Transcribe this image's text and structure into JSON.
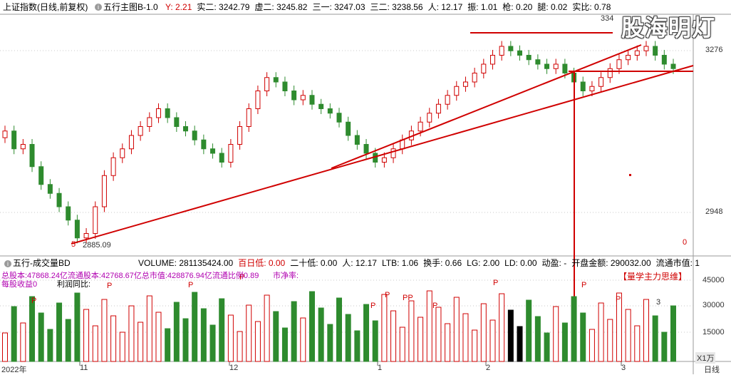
{
  "header": {
    "title": "上证指数(日线,前复权)",
    "indicator": "五行主图B-1.0",
    "readouts": [
      {
        "text": "Y: 2.21",
        "color": "#d00000"
      },
      {
        "text": "实二: 3242.79",
        "color": "#000000"
      },
      {
        "text": "虚二: 3245.82",
        "color": "#000000"
      },
      {
        "text": "三一: 3247.03",
        "color": "#000000"
      },
      {
        "text": "三二: 3238.56",
        "color": "#000000"
      },
      {
        "text": "人: 12.17",
        "color": "#000000"
      },
      {
        "text": "振: 1.01",
        "color": "#000000"
      },
      {
        "text": "枪: 0.20",
        "color": "#000000"
      },
      {
        "text": "腿: 0.02",
        "color": "#000000"
      },
      {
        "text": "实比: 0.78",
        "color": "#000000"
      }
    ]
  },
  "watermark": "股海明灯",
  "price_panel": {
    "low_label": "2885.09",
    "low_marker": "5",
    "top_right_value": "334",
    "right_mark": "0",
    "axis_labels": [
      "3276",
      "2948"
    ]
  },
  "volume_panel": {
    "title": "五行-成交量BD",
    "readouts": [
      {
        "text": "VOLUME: 281135424.00",
        "color": "#000000"
      },
      {
        "text": "百日低: 0.00",
        "color": "#d00000"
      },
      {
        "text": "二十低: 0.00",
        "color": "#000000"
      },
      {
        "text": "人: 12.17",
        "color": "#000000"
      },
      {
        "text": "LTB: 1.06",
        "color": "#000000"
      },
      {
        "text": "换手: 0.66",
        "color": "#000000"
      },
      {
        "text": "LG: 2.00",
        "color": "#000000"
      },
      {
        "text": "LD: 0.00",
        "color": "#000000"
      },
      {
        "text": "动盈: -",
        "color": "#000000"
      },
      {
        "text": "开盘金额: 290032.00",
        "color": "#000000"
      },
      {
        "text": "流通市值: 1",
        "color": "#000000"
      }
    ],
    "line2": "总股本:47868.24亿流通股本:42768.67亿总市值:428876.94亿流通比例0.89",
    "line2b": "市净率:",
    "line3a": "每股收益0",
    "line3b": "利润同比:",
    "brand": "【量学主力思维】",
    "right_num": "3",
    "axis_labels": [
      "45000",
      "30000",
      "15000"
    ],
    "unit": "X1万",
    "p_marks": [
      "P",
      "P",
      "P",
      "P",
      "P",
      "P",
      "PP",
      "P",
      "P",
      "P",
      "P"
    ]
  },
  "time_axis": {
    "labels": [
      "2022年",
      "11",
      "12",
      "1",
      "2",
      "3"
    ],
    "period": "日线"
  },
  "chart_data": {
    "type": "candlestick",
    "series_name": "上证指数",
    "y_axis_ticks": [
      2948,
      3276
    ],
    "low_point": 2885.09,
    "approx_close_sequence": [
      3130,
      3090,
      3100,
      3050,
      3010,
      2990,
      2960,
      2930,
      2890,
      2900,
      2960,
      3030,
      3070,
      3090,
      3120,
      3140,
      3160,
      3180,
      3160,
      3140,
      3130,
      3110,
      3090,
      3080,
      3060,
      3100,
      3140,
      3180,
      3220,
      3250,
      3240,
      3220,
      3200,
      3210,
      3190,
      3180,
      3170,
      3150,
      3120,
      3100,
      3080,
      3060,
      3070,
      3090,
      3110,
      3130,
      3150,
      3170,
      3190,
      3210,
      3230,
      3240,
      3260,
      3280,
      3300,
      3320,
      3310,
      3300,
      3290,
      3280,
      3270,
      3280,
      3260,
      3240,
      3220,
      3230,
      3250,
      3270,
      3290,
      3300,
      3310,
      3320,
      3300,
      3280,
      3270
    ]
  }
}
